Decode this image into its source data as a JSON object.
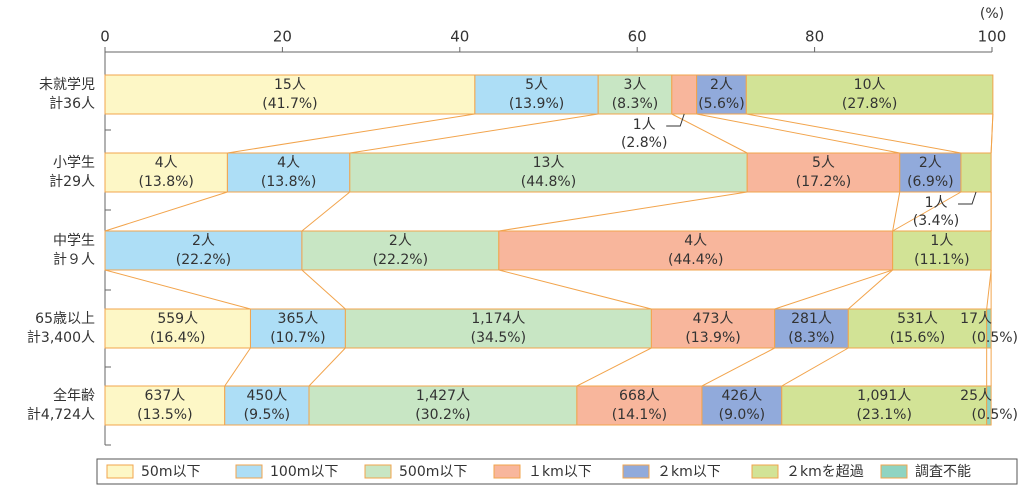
{
  "chart_data": {
    "type": "stacked-bar-horizontal",
    "categories": [
      "未就学児",
      "小学生",
      "中学生",
      "65歳以上",
      "全年齢"
    ],
    "totals": [
      "計36人",
      "計29人",
      "計９人",
      "計3,400人",
      "計4,724人"
    ],
    "x_unit": "(%)",
    "xlim": [
      0,
      100
    ],
    "xticks": [
      0,
      20,
      40,
      60,
      80,
      100
    ],
    "series": [
      {
        "name": "50m以下",
        "color": "#fdf7c6",
        "values": [
          41.7,
          13.8,
          null,
          16.4,
          13.5
        ],
        "value_labels": [
          "(41.7%)",
          "(13.8%)",
          null,
          "(16.4%)",
          "(13.5%)"
        ],
        "count_labels": [
          "15人",
          "4人",
          null,
          "559人",
          "637人"
        ]
      },
      {
        "name": "100m以下",
        "color": "#addef6",
        "values": [
          13.9,
          13.8,
          22.2,
          10.7,
          9.5
        ],
        "value_labels": [
          "(13.9%)",
          "(13.8%)",
          "(22.2%)",
          "(10.7%)",
          "(9.5%)"
        ],
        "count_labels": [
          "5人",
          "4人",
          "2人",
          "365人",
          "450人"
        ]
      },
      {
        "name": "500m以下",
        "color": "#c8e6c4",
        "values": [
          8.3,
          44.8,
          22.2,
          34.5,
          30.2
        ],
        "value_labels": [
          "(8.3%)",
          "(44.8%)",
          "(22.2%)",
          "(34.5%)",
          "(30.2%)"
        ],
        "count_labels": [
          "3人",
          "13人",
          "2人",
          "1,174人",
          "1,427人"
        ]
      },
      {
        "name": "１km以下",
        "color": "#f8b69c",
        "values": [
          2.8,
          17.2,
          44.4,
          13.9,
          14.1
        ],
        "value_labels": [
          "(2.8%)",
          "(17.2%)",
          "(44.4%)",
          "(13.9%)",
          "(14.1%)"
        ],
        "count_labels": [
          "1人",
          "5人",
          "4人",
          "473人",
          "668人"
        ]
      },
      {
        "name": "２km以下",
        "color": "#91aadb",
        "values": [
          5.6,
          6.9,
          null,
          8.3,
          9
        ],
        "value_labels": [
          "(5.6%)",
          "(6.9%)",
          null,
          "(8.3%)",
          "(9.0%)"
        ],
        "count_labels": [
          "2人",
          "2人",
          null,
          "281人",
          "426人"
        ]
      },
      {
        "name": "２kmを超過",
        "color": "#d2e396",
        "values": [
          27.8,
          3.4,
          11.1,
          15.6,
          23.1
        ],
        "value_labels": [
          "(27.8%)",
          "(3.4%)",
          "(11.1%)",
          "(15.6%)",
          "(23.1%)"
        ],
        "count_labels": [
          "10人",
          "1人",
          "1人",
          "531人",
          "1,091人"
        ]
      },
      {
        "name": "調査不能",
        "color": "#8fd4c2",
        "values": [
          null,
          null,
          null,
          0.5,
          0.5
        ],
        "value_labels": [
          null,
          null,
          null,
          "(0.5%)",
          "(0.5%)"
        ],
        "count_labels": [
          null,
          null,
          null,
          "17人",
          "25人"
        ]
      }
    ]
  }
}
